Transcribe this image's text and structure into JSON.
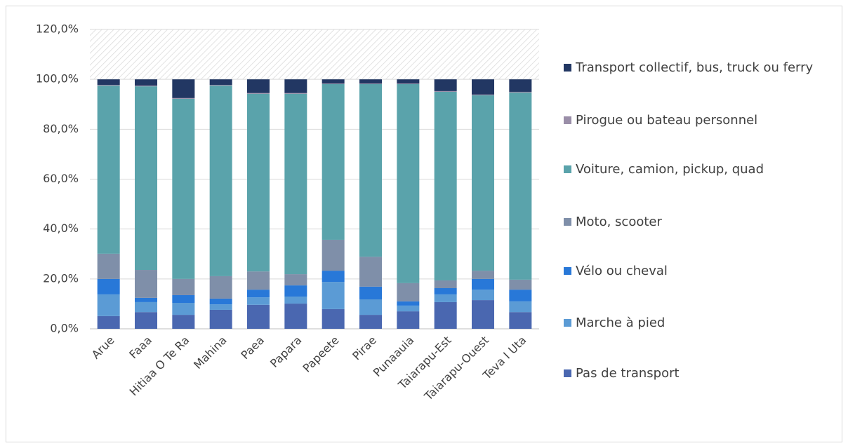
{
  "chart_data": {
    "type": "stacked-bar",
    "categories": [
      "Arue",
      "Faaa",
      "Hitiaa O Te Ra",
      "Mahina",
      "Paea",
      "Papara",
      "Papeete",
      "Pirae",
      "Punaauia",
      "Taiarapu-Est",
      "Taiarapu-Ouest",
      "Teva I Uta"
    ],
    "series": [
      {
        "name": "Pas de transport",
        "color": "#4a67b0",
        "values": [
          5.1,
          6.7,
          5.6,
          7.6,
          9.6,
          10.1,
          7.9,
          5.6,
          7.0,
          10.7,
          11.5,
          6.7
        ]
      },
      {
        "name": "Marche à pied",
        "color": "#5b9bd5",
        "values": [
          8.7,
          4.0,
          4.8,
          2.2,
          3.0,
          2.8,
          10.9,
          6.2,
          2.3,
          3.1,
          4.2,
          4.3
        ]
      },
      {
        "name": "Vélo ou cheval",
        "color": "#2878d8",
        "values": [
          6.2,
          1.7,
          3.1,
          2.3,
          3.1,
          4.5,
          4.5,
          5.1,
          1.7,
          2.5,
          4.3,
          4.7
        ]
      },
      {
        "name": "Moto, scooter",
        "color": "#7f8fa9",
        "values": [
          10.1,
          11.2,
          6.5,
          9.0,
          7.3,
          4.5,
          12.4,
          12.0,
          7.3,
          3.1,
          3.3,
          4.0
        ]
      },
      {
        "name": "Voiture, camion, pickup, quad",
        "color": "#5aa3ab",
        "values": [
          67.4,
          73.6,
          72.2,
          76.4,
          71.2,
          72.3,
          62.4,
          69.2,
          79.8,
          75.6,
          70.3,
          75.0
        ]
      },
      {
        "name": "Pirogue ou bateau personnel",
        "color": "#9a8ea8",
        "values": [
          0.3,
          0.3,
          0.3,
          0.3,
          0.3,
          0.3,
          0.2,
          0.2,
          0.2,
          0.3,
          0.3,
          0.3
        ]
      },
      {
        "name": "Transport collectif, bus, truck ou ferry",
        "color": "#223763",
        "values": [
          2.2,
          2.5,
          7.5,
          2.2,
          5.5,
          5.5,
          1.7,
          1.7,
          1.7,
          4.7,
          6.1,
          5.0
        ]
      }
    ],
    "ylim": [
      0,
      120
    ],
    "yticks": [
      {
        "value": 0,
        "label": "0,0%"
      },
      {
        "value": 20,
        "label": "20,0%"
      },
      {
        "value": 40,
        "label": "40,0%"
      },
      {
        "value": 60,
        "label": "60,0%"
      },
      {
        "value": 80,
        "label": "80,0%"
      },
      {
        "value": 100,
        "label": "100,0%"
      },
      {
        "value": 120,
        "label": "120,0%"
      }
    ],
    "grid": true,
    "legend": "right"
  }
}
